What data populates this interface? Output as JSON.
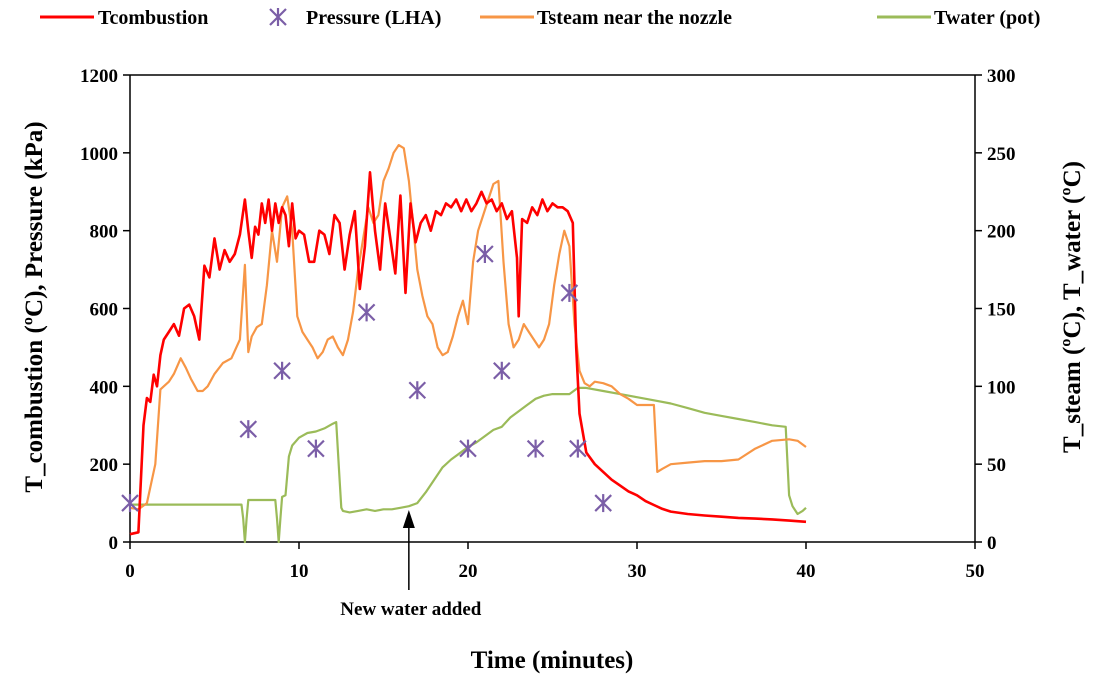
{
  "chart_data": {
    "type": "line",
    "title": "",
    "xlabel": "Time (minutes)",
    "ylabel_left": "T_combustion (ºC), Pressure (kPa)",
    "ylabel_right": "T_steam (ºC), T_water (ºC)",
    "xlim": [
      0,
      50
    ],
    "ylim_left": [
      0,
      1200
    ],
    "ylim_right": [
      0,
      300
    ],
    "xticks": [
      "0",
      "10",
      "20",
      "30",
      "40",
      "50"
    ],
    "yticks_left": [
      "0",
      "200",
      "400",
      "600",
      "800",
      "1000",
      "1200"
    ],
    "yticks_right": [
      "0",
      "50",
      "100",
      "150",
      "200",
      "250",
      "300"
    ],
    "grid": false,
    "legend_position": "top",
    "annotation": {
      "text": "New water added",
      "x": 16.5
    },
    "series": [
      {
        "name": "Tcombustion",
        "axis": "left",
        "kind": "line",
        "color": "#ff0000",
        "x": [
          0,
          0.5,
          0.8,
          1.0,
          1.2,
          1.4,
          1.6,
          1.8,
          2.0,
          2.3,
          2.6,
          2.9,
          3.2,
          3.5,
          3.8,
          4.1,
          4.4,
          4.7,
          5.0,
          5.3,
          5.6,
          5.9,
          6.2,
          6.5,
          6.8,
          7.0,
          7.2,
          7.4,
          7.6,
          7.8,
          8.0,
          8.2,
          8.4,
          8.6,
          8.8,
          9.0,
          9.2,
          9.4,
          9.6,
          9.8,
          10.0,
          10.3,
          10.6,
          10.9,
          11.2,
          11.5,
          11.8,
          12.1,
          12.4,
          12.7,
          13.0,
          13.3,
          13.6,
          13.9,
          14.2,
          14.5,
          14.8,
          15.1,
          15.4,
          15.7,
          16.0,
          16.3,
          16.6,
          16.9,
          17.2,
          17.5,
          17.8,
          18.1,
          18.4,
          18.7,
          19.0,
          19.3,
          19.6,
          19.9,
          20.2,
          20.5,
          20.8,
          21.1,
          21.4,
          21.7,
          22.0,
          22.3,
          22.6,
          22.9,
          23.0,
          23.2,
          23.5,
          23.8,
          24.1,
          24.4,
          24.7,
          25.0,
          25.3,
          25.6,
          25.9,
          26.2,
          26.4,
          26.6,
          26.8,
          27.0,
          27.5,
          28.0,
          28.5,
          29.0,
          29.5,
          30.0,
          30.5,
          31.0,
          31.5,
          32.0,
          33.0,
          34.0,
          35.0,
          36.0,
          37.0,
          38.0,
          39.0,
          40.0
        ],
        "y": [
          20,
          25,
          300,
          370,
          360,
          430,
          400,
          480,
          520,
          540,
          560,
          530,
          600,
          610,
          580,
          520,
          710,
          680,
          780,
          700,
          750,
          720,
          740,
          790,
          880,
          800,
          730,
          810,
          790,
          870,
          820,
          880,
          800,
          870,
          820,
          860,
          840,
          760,
          870,
          780,
          800,
          790,
          720,
          720,
          800,
          790,
          740,
          840,
          820,
          700,
          790,
          850,
          650,
          760,
          950,
          800,
          700,
          870,
          780,
          690,
          890,
          640,
          870,
          770,
          820,
          840,
          800,
          850,
          840,
          870,
          860,
          880,
          850,
          880,
          850,
          870,
          900,
          870,
          880,
          850,
          870,
          830,
          850,
          730,
          580,
          830,
          820,
          860,
          840,
          880,
          850,
          870,
          860,
          860,
          850,
          820,
          500,
          330,
          280,
          230,
          200,
          180,
          160,
          145,
          130,
          120,
          105,
          95,
          85,
          78,
          72,
          68,
          65,
          62,
          60,
          58,
          55,
          52
        ]
      },
      {
        "name": "Pressure (LHA)",
        "axis": "left",
        "kind": "scatter",
        "color": "#7b5ea7",
        "x": [
          0,
          7,
          9,
          11,
          14,
          17,
          20,
          21,
          22,
          24,
          26,
          26.5,
          28
        ],
        "y": [
          100,
          290,
          440,
          240,
          590,
          390,
          240,
          740,
          440,
          240,
          640,
          240,
          100
        ]
      },
      {
        "name": "Tsteam near the nozzle",
        "axis": "right",
        "kind": "line",
        "color": "#f79646",
        "x": [
          0,
          0.5,
          1.0,
          1.5,
          1.8,
          2.0,
          2.3,
          2.6,
          3.0,
          3.3,
          3.6,
          4.0,
          4.3,
          4.6,
          5.0,
          5.5,
          6.0,
          6.5,
          6.8,
          7.0,
          7.2,
          7.5,
          7.8,
          8.1,
          8.4,
          8.7,
          9.0,
          9.3,
          9.6,
          9.9,
          10.2,
          10.5,
          10.8,
          11.1,
          11.4,
          11.7,
          12.0,
          12.3,
          12.6,
          12.9,
          13.2,
          13.5,
          13.8,
          14.1,
          14.4,
          14.7,
          15.0,
          15.3,
          15.6,
          15.9,
          16.2,
          16.5,
          16.7,
          17.0,
          17.3,
          17.6,
          17.9,
          18.2,
          18.5,
          18.8,
          19.1,
          19.4,
          19.7,
          20.0,
          20.3,
          20.6,
          20.9,
          21.2,
          21.5,
          21.8,
          22.1,
          22.4,
          22.7,
          23.0,
          23.3,
          23.6,
          23.9,
          24.2,
          24.5,
          24.8,
          25.1,
          25.4,
          25.7,
          26.0,
          26.3,
          26.6,
          26.9,
          27.2,
          27.5,
          28.0,
          28.5,
          29.0,
          29.5,
          30.0,
          30.5,
          31.0,
          31.2,
          31.5,
          32.0,
          33.0,
          34.0,
          35.0,
          36.0,
          37.0,
          38.0,
          39.0,
          39.5,
          40.0
        ],
        "y": [
          22,
          21,
          25,
          50,
          98,
          100,
          103,
          108,
          118,
          112,
          105,
          97,
          97,
          100,
          108,
          115,
          118,
          130,
          178,
          122,
          132,
          138,
          140,
          165,
          200,
          180,
          215,
          222,
          200,
          145,
          135,
          130,
          125,
          118,
          122,
          130,
          132,
          125,
          120,
          130,
          148,
          175,
          195,
          215,
          205,
          210,
          232,
          240,
          250,
          255,
          253,
          232,
          210,
          175,
          158,
          145,
          140,
          125,
          120,
          122,
          132,
          145,
          155,
          140,
          180,
          200,
          210,
          220,
          230,
          232,
          180,
          140,
          125,
          130,
          140,
          135,
          130,
          125,
          130,
          140,
          165,
          185,
          200,
          190,
          140,
          110,
          102,
          100,
          103,
          102,
          100,
          95,
          92,
          88,
          88,
          88,
          45,
          47,
          50,
          51,
          52,
          52,
          53,
          60,
          65,
          66,
          65,
          61
        ]
      },
      {
        "name": "Twater (pot)",
        "axis": "right",
        "kind": "line",
        "color": "#9bbb59",
        "x": [
          0,
          1,
          2,
          3,
          4,
          5,
          6,
          6.6,
          6.7,
          6.8,
          6.9,
          7.0,
          7.5,
          8.0,
          8.6,
          8.7,
          8.8,
          8.9,
          9.0,
          9.2,
          9.4,
          9.6,
          10.0,
          10.5,
          11.0,
          11.5,
          12.0,
          12.2,
          12.4,
          12.5,
          12.6,
          13.0,
          13.5,
          14.0,
          14.5,
          15.0,
          15.5,
          16.0,
          16.5,
          17.0,
          17.5,
          18.0,
          18.5,
          19.0,
          19.5,
          20.0,
          20.5,
          21.0,
          21.5,
          22.0,
          22.5,
          23.0,
          23.5,
          24.0,
          24.5,
          25.0,
          25.5,
          26.0,
          26.5,
          27.0,
          28.0,
          29.0,
          30.0,
          31.0,
          32.0,
          33.0,
          34.0,
          35.0,
          36.0,
          37.0,
          38.0,
          38.8,
          39.0,
          39.2,
          39.5,
          39.8,
          40.0
        ],
        "y": [
          24,
          24,
          24,
          24,
          24,
          24,
          24,
          24,
          15,
          0,
          15,
          27,
          27,
          27,
          27,
          15,
          0,
          15,
          29,
          30,
          55,
          62,
          67,
          70,
          71,
          73,
          76,
          77,
          40,
          22,
          20,
          19,
          20,
          21,
          20,
          21,
          21,
          22,
          23,
          25,
          32,
          40,
          48,
          53,
          57,
          61,
          64,
          68,
          72,
          74,
          80,
          84,
          88,
          92,
          94,
          95,
          95,
          95,
          99,
          99,
          97,
          95,
          93,
          91,
          89,
          86,
          83,
          81,
          79,
          77,
          75,
          74,
          30,
          23,
          18,
          20,
          22
        ]
      }
    ]
  }
}
